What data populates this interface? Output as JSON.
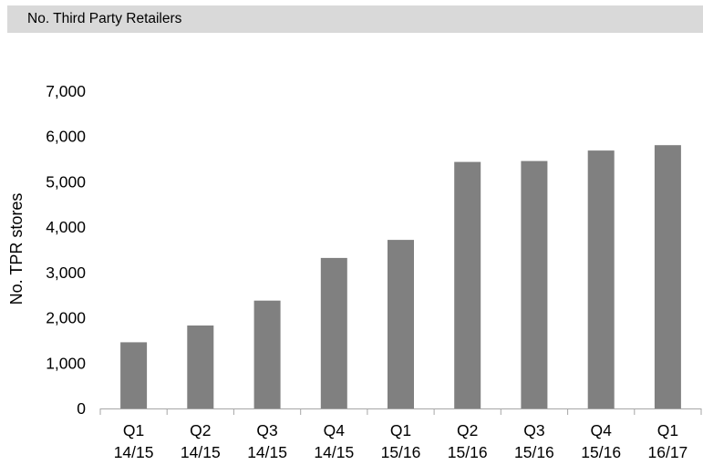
{
  "header": {
    "title": "No. Third Party Retailers"
  },
  "chart_data": {
    "type": "bar",
    "title": "No. Third Party Retailers",
    "ylabel": "No. TPR stores",
    "xlabel": "",
    "ylim": [
      0,
      7000
    ],
    "yticks": [
      0,
      1000,
      2000,
      3000,
      4000,
      5000,
      6000,
      7000
    ],
    "ytick_labels": [
      "0",
      "1,000",
      "2,000",
      "3,000",
      "4,000",
      "5,000",
      "6,000",
      "7,000"
    ],
    "categories": [
      [
        "Q1",
        "14/15"
      ],
      [
        "Q2",
        "14/15"
      ],
      [
        "Q3",
        "14/15"
      ],
      [
        "Q4",
        "14/15"
      ],
      [
        "Q1",
        "15/16"
      ],
      [
        "Q2",
        "15/16"
      ],
      [
        "Q3",
        "15/16"
      ],
      [
        "Q4",
        "15/16"
      ],
      [
        "Q1",
        "16/17"
      ]
    ],
    "values": [
      1460,
      1830,
      2380,
      3320,
      3720,
      5440,
      5460,
      5690,
      5810
    ],
    "bar_color": "#808080",
    "grid": false,
    "legend": "none"
  }
}
